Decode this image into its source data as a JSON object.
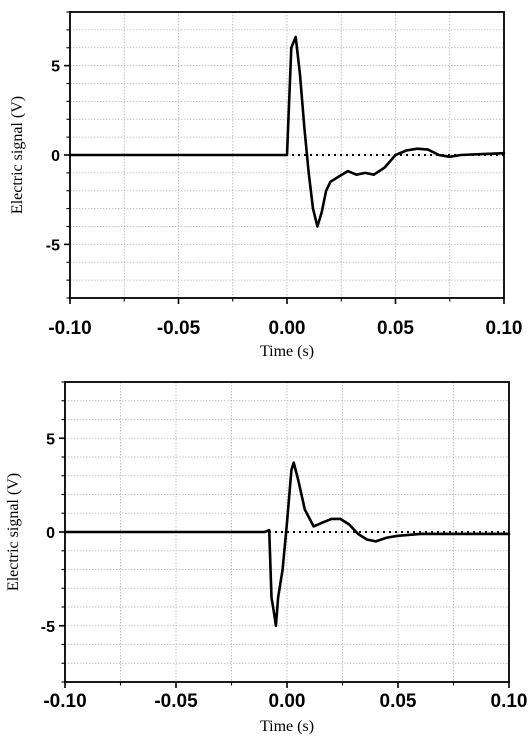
{
  "chart_data": [
    {
      "type": "line",
      "xlabel": "Time (s)",
      "ylabel": "Electric signal (V)",
      "xlim": [
        -0.1,
        0.1
      ],
      "ylim": [
        -8,
        8
      ],
      "x_ticks": [
        -0.1,
        -0.05,
        0.0,
        0.05,
        0.1
      ],
      "x_tick_labels": [
        "-0.10",
        "-0.05",
        "0.00",
        "0.05",
        "0.10"
      ],
      "y_ticks": [
        -5,
        0,
        5
      ],
      "y_tick_labels": [
        "-5",
        "0",
        "5"
      ],
      "grid": true,
      "zero_reference_line": true,
      "series": [
        {
          "x": [
            -0.1,
            -0.08,
            -0.06,
            -0.04,
            -0.02,
            -0.005,
            0.0,
            0.002,
            0.004,
            0.006,
            0.008,
            0.01,
            0.012,
            0.014,
            0.016,
            0.018,
            0.02,
            0.024,
            0.028,
            0.032,
            0.036,
            0.04,
            0.045,
            0.05,
            0.055,
            0.06,
            0.065,
            0.07,
            0.075,
            0.08,
            0.09,
            0.1
          ],
          "y": [
            0.0,
            0.0,
            0.0,
            0.0,
            0.0,
            0.0,
            0.0,
            6.0,
            6.6,
            4.5,
            1.5,
            -1.0,
            -3.0,
            -4.0,
            -3.2,
            -2.0,
            -1.5,
            -1.2,
            -0.9,
            -1.1,
            -1.0,
            -1.1,
            -0.7,
            0.0,
            0.25,
            0.35,
            0.3,
            0.0,
            -0.1,
            0.0,
            0.05,
            0.1
          ]
        }
      ]
    },
    {
      "type": "line",
      "xlabel": "Time (s)",
      "ylabel": "Electric signal (V)",
      "xlim": [
        -0.1,
        0.1
      ],
      "ylim": [
        -8,
        8
      ],
      "x_ticks": [
        -0.1,
        -0.05,
        0.0,
        0.05,
        0.1
      ],
      "x_tick_labels": [
        "-0.10",
        "-0.05",
        "0.00",
        "0.05",
        "0.10"
      ],
      "y_ticks": [
        -5,
        0,
        5
      ],
      "y_tick_labels": [
        "-5",
        "0",
        "5"
      ],
      "grid": true,
      "zero_reference_line": true,
      "series": [
        {
          "x": [
            -0.1,
            -0.08,
            -0.06,
            -0.04,
            -0.02,
            -0.01,
            -0.008,
            -0.007,
            -0.006,
            -0.005,
            -0.004,
            -0.002,
            0.0,
            0.002,
            0.003,
            0.005,
            0.008,
            0.012,
            0.016,
            0.02,
            0.024,
            0.028,
            0.032,
            0.036,
            0.04,
            0.045,
            0.05,
            0.06,
            0.07,
            0.08,
            0.09,
            0.1
          ],
          "y": [
            0.0,
            0.0,
            0.0,
            0.0,
            0.0,
            0.0,
            0.1,
            -3.5,
            -4.2,
            -5.0,
            -3.5,
            -2.0,
            0.5,
            3.3,
            3.7,
            2.8,
            1.2,
            0.3,
            0.5,
            0.7,
            0.7,
            0.4,
            -0.1,
            -0.4,
            -0.5,
            -0.3,
            -0.2,
            -0.1,
            -0.1,
            -0.1,
            -0.1,
            -0.1
          ]
        }
      ]
    }
  ]
}
